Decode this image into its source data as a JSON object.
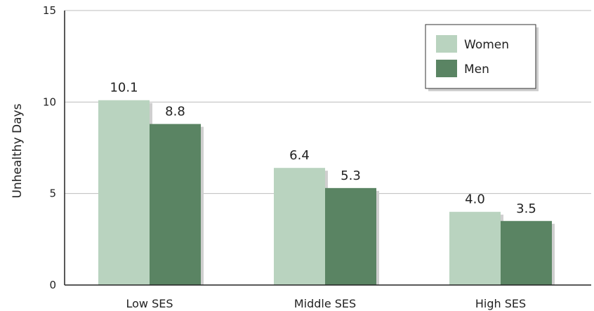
{
  "chart_data": {
    "type": "bar",
    "categories": [
      "Low SES",
      "Middle SES",
      "High SES"
    ],
    "series": [
      {
        "name": "Women",
        "values": [
          10.1,
          6.4,
          4.0
        ],
        "labels": [
          "10.1",
          "6.4",
          "4.0"
        ],
        "color": "#b9d3bf"
      },
      {
        "name": "Men",
        "values": [
          8.8,
          5.3,
          3.5
        ],
        "labels": [
          "8.8",
          "5.3",
          "3.5"
        ],
        "color": "#5a8463"
      }
    ],
    "ylabel": "Unhealthy Days",
    "xlabel": "",
    "ylim": [
      0,
      15
    ],
    "yticks": [
      {
        "value": 0,
        "label": "0"
      },
      {
        "value": 5,
        "label": "5"
      },
      {
        "value": 10,
        "label": "10"
      },
      {
        "value": 15,
        "label": "15"
      }
    ],
    "grid": true,
    "legend_position": "top-right",
    "axis_color": "#222222",
    "grid_color": "#bdbdbd",
    "shadow_color": "#cfcfcf"
  }
}
